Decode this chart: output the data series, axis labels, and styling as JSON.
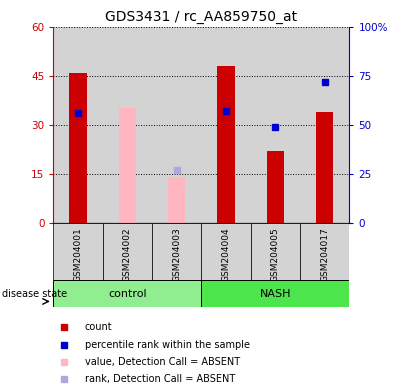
{
  "title": "GDS3431 / rc_AA859750_at",
  "samples": [
    "GSM204001",
    "GSM204002",
    "GSM204003",
    "GSM204004",
    "GSM204005",
    "GSM204017"
  ],
  "groups": [
    {
      "label": "control",
      "indices": [
        0,
        1,
        2
      ],
      "color": "#90EE90"
    },
    {
      "label": "NASH",
      "indices": [
        3,
        4,
        5
      ],
      "color": "#4CE64C"
    }
  ],
  "red_bars": [
    46,
    null,
    null,
    48,
    22,
    34
  ],
  "pink_bars": [
    null,
    35,
    14,
    null,
    null,
    null
  ],
  "blue_squares": [
    56,
    null,
    null,
    57,
    49,
    72
  ],
  "light_blue_squares": [
    null,
    null,
    27,
    null,
    null,
    null
  ],
  "left_ylim": [
    0,
    60
  ],
  "right_ylim": [
    0,
    100
  ],
  "left_yticks": [
    0,
    15,
    30,
    45,
    60
  ],
  "left_yticklabels": [
    "0",
    "15",
    "30",
    "45",
    "60"
  ],
  "right_yticks": [
    0,
    25,
    50,
    75,
    100
  ],
  "right_yticklabels": [
    "0",
    "25",
    "50",
    "75",
    "100%"
  ],
  "red_color": "#CC0000",
  "pink_color": "#FFB6C1",
  "blue_color": "#0000CC",
  "light_blue_color": "#AAAADD",
  "bg_color": "#D3D3D3",
  "legend_items": [
    {
      "label": "count",
      "color": "#CC0000"
    },
    {
      "label": "percentile rank within the sample",
      "color": "#0000CC"
    },
    {
      "label": "value, Detection Call = ABSENT",
      "color": "#FFB6C1"
    },
    {
      "label": "rank, Detection Call = ABSENT",
      "color": "#AAAADD"
    }
  ],
  "disease_state_label": "disease state",
  "title_fontsize": 10,
  "tick_fontsize": 7.5,
  "sample_fontsize": 6.5,
  "legend_fontsize": 7,
  "group_fontsize": 8
}
